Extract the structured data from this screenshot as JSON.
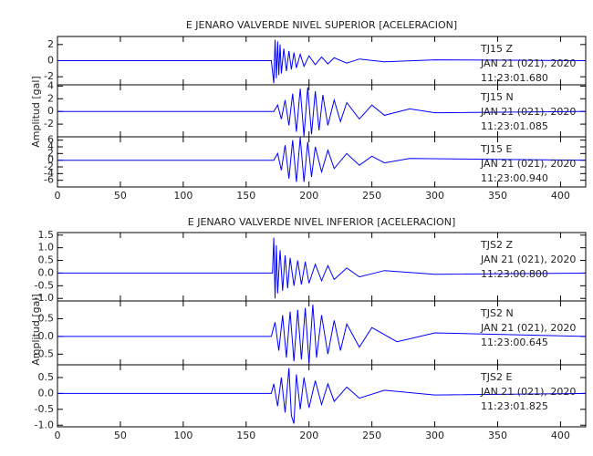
{
  "chart_data": [
    {
      "type": "line",
      "title": "E JENARO VALVERDE NIVEL SUPERIOR [ACELERACION]",
      "ylabel": "Amplitud [gal]",
      "xlim": [
        0,
        420
      ],
      "xticks": [
        0,
        50,
        100,
        150,
        200,
        250,
        300,
        350,
        400
      ],
      "series": [
        {
          "name": "TJ15   Z",
          "date": "JAN 21 (021), 2020",
          "time": "11:23:01.680",
          "color": "#0000ff",
          "ylim": [
            -3,
            3
          ],
          "yticks": [
            -2,
            0,
            2
          ],
          "x": [
            0,
            170,
            172,
            173,
            174,
            175,
            176,
            177,
            178,
            180,
            182,
            184,
            186,
            188,
            190,
            193,
            196,
            200,
            205,
            210,
            215,
            220,
            230,
            240,
            260,
            300,
            420
          ],
          "values": [
            0,
            0,
            -2.8,
            2.6,
            -2.2,
            2.4,
            -1.8,
            2.0,
            -1.6,
            1.5,
            -1.3,
            1.2,
            -1.1,
            1.0,
            -0.9,
            0.8,
            -0.7,
            0.6,
            -0.5,
            0.45,
            -0.4,
            0.35,
            -0.3,
            0.2,
            -0.15,
            0.1,
            0
          ]
        },
        {
          "name": "TJ15   N",
          "date": "JAN 21 (021), 2020",
          "time": "11:23:01.085",
          "color": "#0000ff",
          "ylim": [
            -4,
            4.2
          ],
          "yticks": [
            -2,
            0,
            2,
            4
          ],
          "x": [
            0,
            172,
            175,
            178,
            181,
            184,
            187,
            190,
            193,
            196,
            199,
            202,
            205,
            208,
            211,
            215,
            220,
            225,
            230,
            240,
            250,
            260,
            280,
            300,
            420
          ],
          "values": [
            0,
            0,
            1.0,
            -1.2,
            1.8,
            -2.2,
            2.8,
            -3.2,
            3.6,
            -3.9,
            3.8,
            -3.6,
            3.2,
            -3.0,
            2.6,
            -2.2,
            1.8,
            -1.6,
            1.4,
            -1.2,
            1.0,
            -0.6,
            0.4,
            -0.2,
            0
          ]
        },
        {
          "name": "TJ15   E",
          "date": "JAN 21 (021), 2020",
          "time": "11:23:00.940",
          "color": "#0000ff",
          "ylim": [
            -8,
            7
          ],
          "yticks": [
            -6,
            -4,
            -2,
            0,
            2,
            4,
            6
          ],
          "x": [
            0,
            172,
            175,
            178,
            181,
            184,
            187,
            190,
            193,
            196,
            199,
            202,
            205,
            210,
            215,
            220,
            230,
            240,
            250,
            260,
            280,
            420
          ],
          "values": [
            0,
            0,
            2.0,
            -3.0,
            4.5,
            -5.5,
            6.0,
            -6.5,
            6.8,
            -6.5,
            5.5,
            -5.0,
            4.0,
            -3.5,
            3.0,
            -2.5,
            2.0,
            -1.5,
            1.2,
            -0.8,
            0.5,
            0
          ]
        }
      ]
    },
    {
      "type": "line",
      "title": "E JENARO VALVERDE NIVEL INFERIOR [ACELERACION]",
      "ylabel": "Amplitud [gal]",
      "xlim": [
        0,
        420
      ],
      "xticks": [
        0,
        50,
        100,
        150,
        200,
        250,
        300,
        350,
        400
      ],
      "series": [
        {
          "name": "TJS2   Z",
          "date": "JAN 21 (021), 2020",
          "time": "11:23:00.800",
          "color": "#0000ff",
          "ylim": [
            -1.1,
            1.6
          ],
          "yticks": [
            {
              "value": -1,
              "label": "-1.0"
            },
            -0.5,
            {
              "value": 0,
              "label": "0.0"
            },
            0.5,
            {
              "value": 1,
              "label": "1.0"
            },
            1.5
          ],
          "x": [
            0,
            171,
            172,
            173,
            174,
            175,
            177,
            179,
            181,
            183,
            185,
            188,
            191,
            194,
            197,
            200,
            205,
            210,
            215,
            220,
            230,
            240,
            260,
            300,
            420
          ],
          "values": [
            0,
            0,
            1.4,
            -1.0,
            1.1,
            -0.8,
            0.9,
            -0.7,
            0.7,
            -0.6,
            0.6,
            -0.5,
            0.5,
            -0.45,
            0.45,
            -0.4,
            0.35,
            -0.3,
            0.3,
            -0.25,
            0.2,
            -0.15,
            0.1,
            -0.05,
            0
          ]
        },
        {
          "name": "TJS2   N",
          "date": "JAN 21 (021), 2020",
          "time": "11:23:00.645",
          "color": "#0000ff",
          "ylim": [
            -0.8,
            1.0
          ],
          "yticks": [
            -0.5,
            {
              "value": 0,
              "label": "0.0"
            },
            0.5
          ],
          "x": [
            0,
            170,
            173,
            176,
            179,
            182,
            185,
            188,
            191,
            194,
            197,
            200,
            203,
            206,
            210,
            215,
            220,
            225,
            230,
            240,
            250,
            270,
            300,
            420
          ],
          "values": [
            0,
            0,
            0.4,
            -0.4,
            0.6,
            -0.6,
            0.7,
            -0.7,
            0.75,
            -0.65,
            0.8,
            -0.75,
            0.9,
            -0.6,
            0.6,
            -0.5,
            0.45,
            -0.4,
            0.35,
            -0.3,
            0.25,
            -0.15,
            0.1,
            0
          ]
        },
        {
          "name": "TJS2   E",
          "date": "JAN 21 (021), 2020",
          "time": "11:23:01.825",
          "color": "#0000ff",
          "ylim": [
            -1.05,
            0.9
          ],
          "yticks": [
            {
              "value": -1,
              "label": "-1.0"
            },
            -0.5,
            {
              "value": 0,
              "label": "0.0"
            },
            0.5
          ],
          "x": [
            0,
            170,
            172,
            175,
            178,
            181,
            184,
            186,
            188,
            190,
            193,
            196,
            200,
            205,
            210,
            215,
            220,
            230,
            240,
            260,
            300,
            420
          ],
          "values": [
            0,
            0,
            0.3,
            -0.4,
            0.5,
            -0.6,
            0.8,
            -0.7,
            -0.95,
            0.6,
            -0.5,
            0.5,
            -0.45,
            0.4,
            -0.35,
            0.3,
            -0.25,
            0.2,
            -0.15,
            0.1,
            -0.05,
            0
          ]
        }
      ]
    }
  ]
}
